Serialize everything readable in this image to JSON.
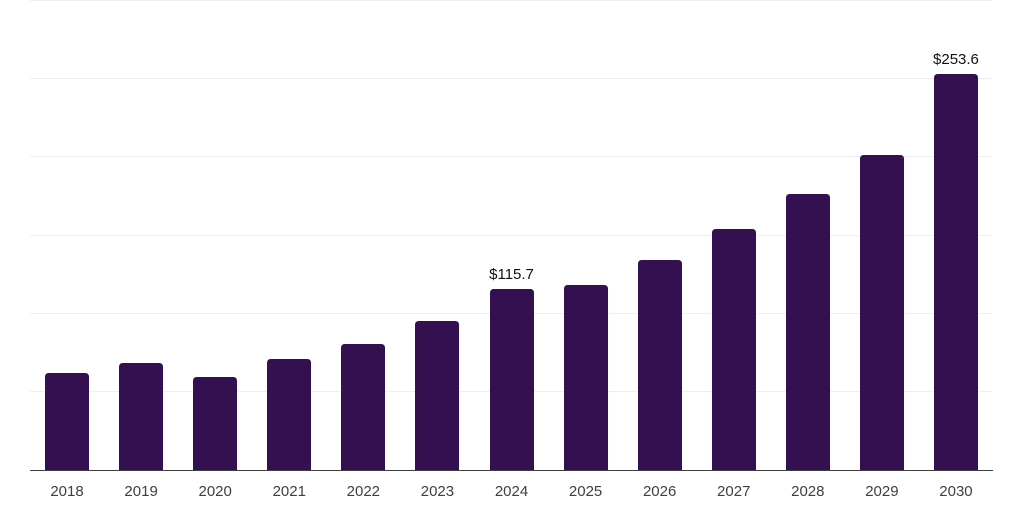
{
  "chart_data": {
    "type": "bar",
    "title": "",
    "xlabel": "",
    "ylabel": "",
    "ylim": [
      0,
      300
    ],
    "gridline_interval": 50,
    "grid": true,
    "legend": false,
    "categories": [
      "2018",
      "2019",
      "2020",
      "2021",
      "2022",
      "2023",
      "2024",
      "2025",
      "2026",
      "2027",
      "2028",
      "2029",
      "2030"
    ],
    "values": [
      61.8,
      68.2,
      59.6,
      71.0,
      80.9,
      95.0,
      115.7,
      118.6,
      134.6,
      154.1,
      176.7,
      201.8,
      253.6
    ],
    "data_labels": {
      "2024": "$115.7",
      "2030": "$253.6"
    },
    "colors": {
      "bar": "#351051",
      "gridline": "#efefef",
      "axis": "#3f3f3f",
      "value_label": "#111111",
      "tick_label": "#3f3f3f",
      "background": "#ffffff"
    }
  }
}
